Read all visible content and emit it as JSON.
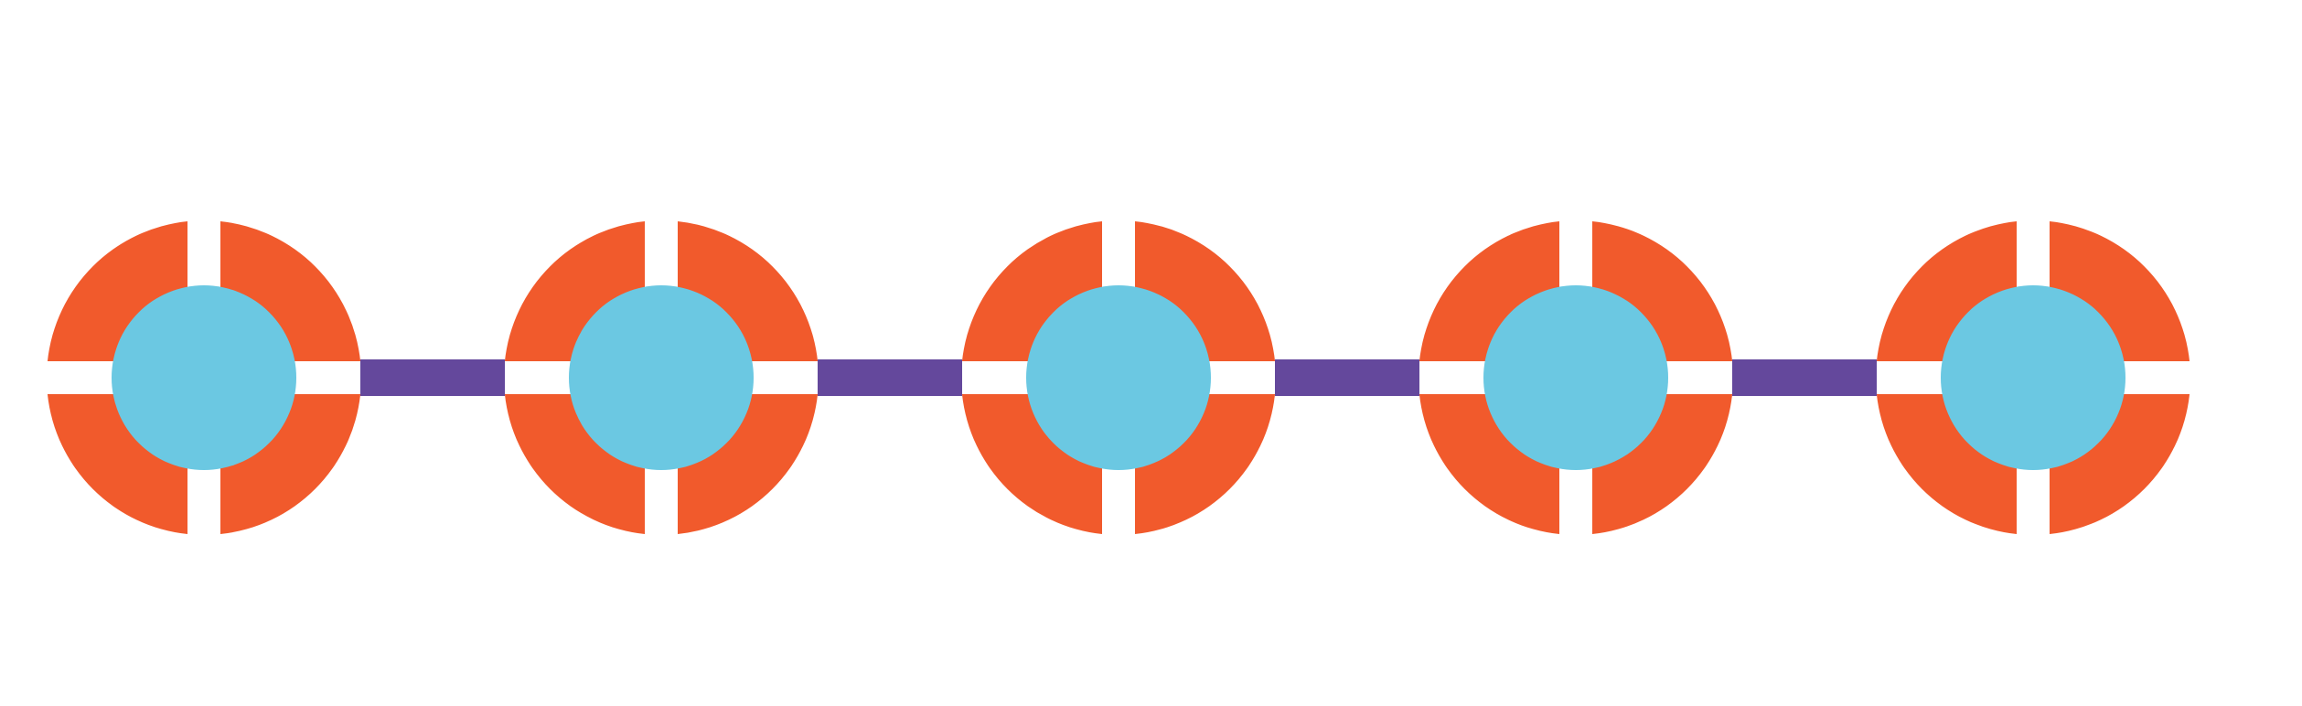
{
  "diagram": {
    "node_count": 5,
    "nodes": [
      {
        "id": "node-1",
        "icon": "quartered-ring-node"
      },
      {
        "id": "node-2",
        "icon": "quartered-ring-node"
      },
      {
        "id": "node-3",
        "icon": "quartered-ring-node"
      },
      {
        "id": "node-4",
        "icon": "quartered-ring-node"
      },
      {
        "id": "node-5",
        "icon": "quartered-ring-node"
      }
    ],
    "links": [
      {
        "from": "node-1",
        "to": "node-2"
      },
      {
        "from": "node-2",
        "to": "node-3"
      },
      {
        "from": "node-3",
        "to": "node-4"
      },
      {
        "from": "node-4",
        "to": "node-5"
      }
    ],
    "colors": {
      "background": "#ffffff",
      "ring": "#f15a2c",
      "core": "#6bc8e2",
      "link": "#64489c"
    }
  }
}
